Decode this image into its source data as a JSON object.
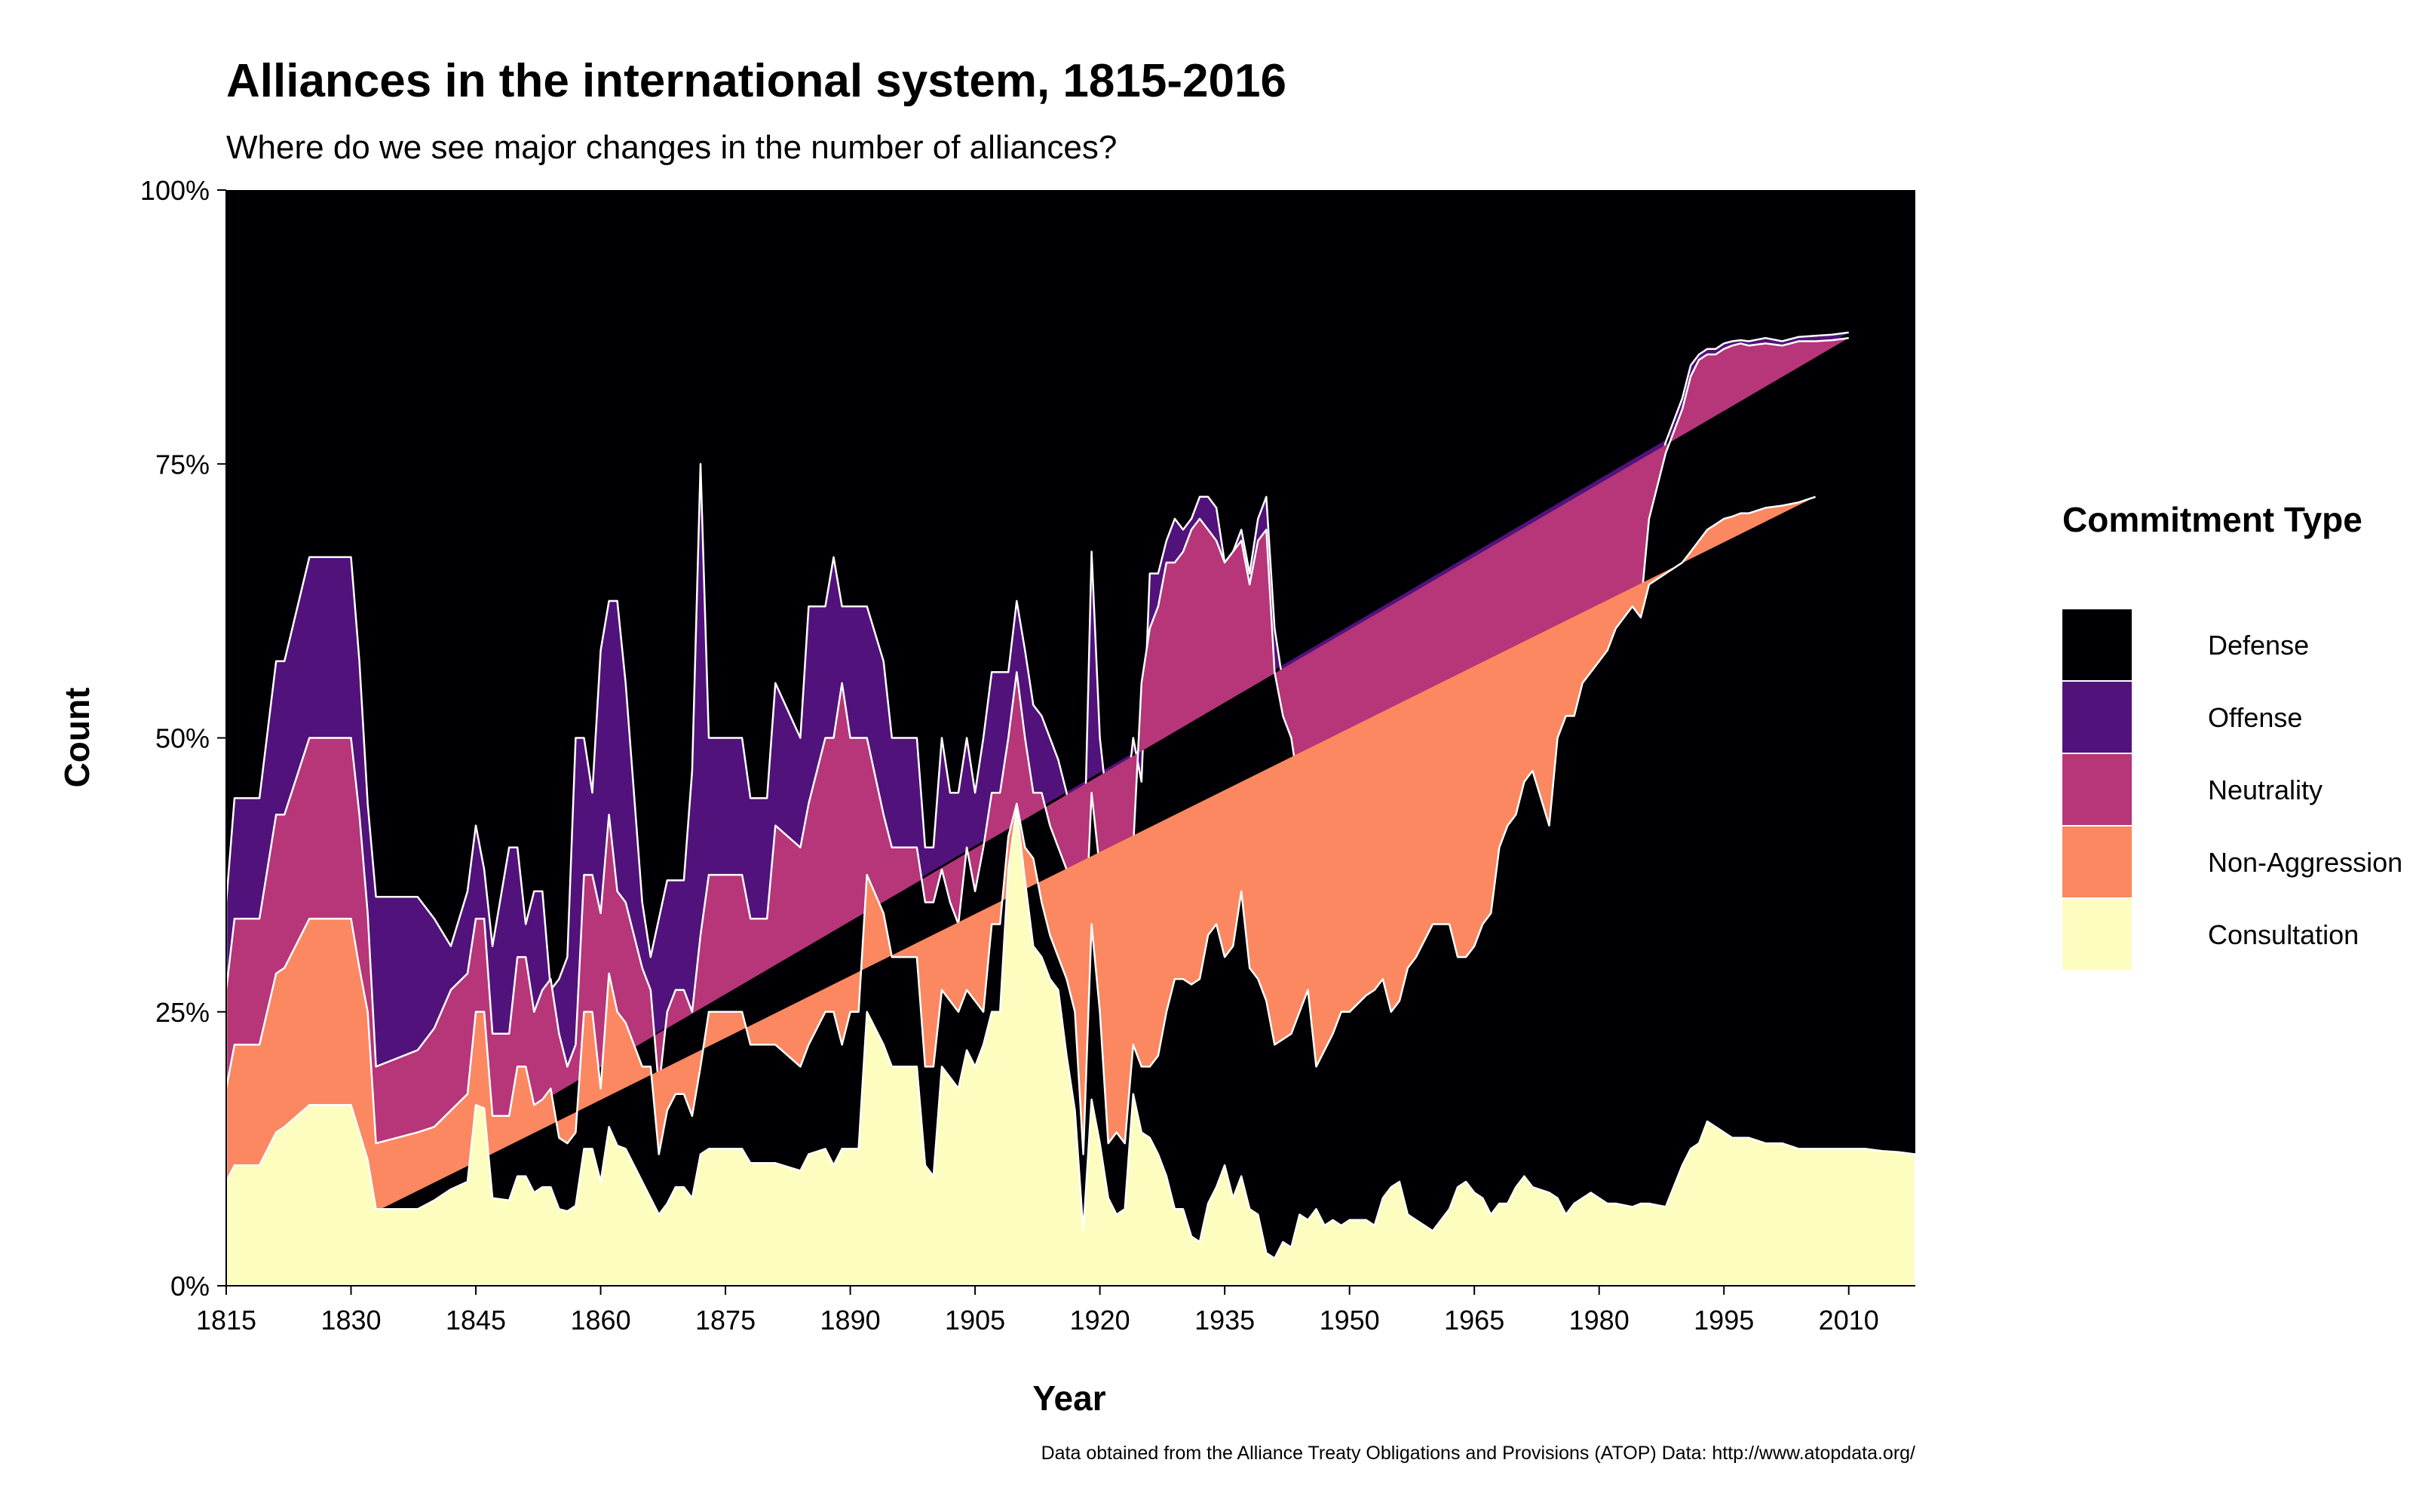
{
  "chart_data": {
    "type": "area",
    "stacked": "percent",
    "title": "Alliances in the international system, 1815-2016",
    "subtitle": "Where do we see major changes in the number of alliances?",
    "xlabel": "Year",
    "ylabel": "Count",
    "caption": "Data obtained from the Alliance Treaty Obligations and Provisions (ATOP) Data: http://www.atopdata.org/",
    "xlim": [
      1815,
      2018
    ],
    "ylim": [
      0,
      1
    ],
    "x_ticks": [
      1815,
      1830,
      1845,
      1860,
      1875,
      1890,
      1905,
      1920,
      1935,
      1950,
      1965,
      1980,
      1995,
      2010
    ],
    "x_tick_labels": [
      "1815",
      "1830",
      "1845",
      "1860",
      "1875",
      "1890",
      "1905",
      "1920",
      "1935",
      "1950",
      "1965",
      "1980",
      "1995",
      "2010"
    ],
    "y_ticks": [
      0,
      0.25,
      0.5,
      0.75,
      1
    ],
    "y_tick_labels": [
      "0%",
      "25%",
      "50%",
      "75%",
      "100%"
    ],
    "grid": false,
    "legend": {
      "title": "Commitment Type",
      "position": "right",
      "entries": [
        "Defense",
        "Offense",
        "Neutrality",
        "Non-Aggression",
        "Consultation"
      ]
    },
    "stack_order_bottom_to_top": [
      "Consultation",
      "Non-Aggression",
      "Neutrality",
      "Offense",
      "Defense"
    ],
    "colors": {
      "Defense": "#000004",
      "Offense": "#51127C",
      "Neutrality": "#B63679",
      "Non-Aggression": "#FB8861",
      "Consultation": "#FCFDBF"
    },
    "x": [
      1815,
      1816,
      1819,
      1821,
      1822,
      1825,
      1830,
      1831,
      1832,
      1833,
      1838,
      1840,
      1842,
      1844,
      1845,
      1846,
      1847,
      1849,
      1850,
      1851,
      1852,
      1853,
      1854,
      1855,
      1856,
      1857,
      1858,
      1859,
      1860,
      1861,
      1862,
      1863,
      1865,
      1866,
      1867,
      1868,
      1869,
      1870,
      1871,
      1872,
      1873,
      1877,
      1878,
      1879,
      1880,
      1881,
      1884,
      1885,
      1887,
      1888,
      1889,
      1890,
      1891,
      1892,
      1894,
      1895,
      1898,
      1899,
      1900,
      1901,
      1902,
      1903,
      1904,
      1905,
      1906,
      1907,
      1908,
      1909,
      1910,
      1911,
      1912,
      1913,
      1914,
      1915,
      1916,
      1917,
      1918,
      1919,
      1920,
      1921,
      1922,
      1923,
      1924,
      1925,
      1926,
      1927,
      1928,
      1929,
      1930,
      1931,
      1932,
      1933,
      1934,
      1935,
      1936,
      1937,
      1938,
      1939,
      1940,
      1941,
      1942,
      1943,
      1944,
      1945,
      1946,
      1947,
      1948,
      1949,
      1950,
      1952,
      1953,
      1954,
      1955,
      1956,
      1957,
      1958,
      1960,
      1962,
      1963,
      1964,
      1965,
      1966,
      1967,
      1968,
      1969,
      1970,
      1971,
      1972,
      1974,
      1975,
      1976,
      1977,
      1978,
      1979,
      1980,
      1981,
      1982,
      1984,
      1985,
      1986,
      1988,
      1990,
      1991,
      1992,
      1993,
      1994,
      1995,
      1996,
      1997,
      1998,
      2000,
      2002,
      2004,
      2006,
      2008,
      2010,
      2012,
      2014,
      2016,
      2018
    ],
    "cumulative_upper_bounds": {
      "Consultation": [
        0.095,
        0.11,
        0.11,
        0.14,
        0.145,
        0.165,
        0.165,
        0.14,
        0.115,
        0.07,
        0.07,
        0.078,
        0.088,
        0.095,
        0.165,
        0.162,
        0.08,
        0.078,
        0.1,
        0.1,
        0.085,
        0.09,
        0.09,
        0.07,
        0.068,
        0.073,
        0.125,
        0.125,
        0.095,
        0.145,
        0.128,
        0.125,
        0.095,
        0.08,
        0.065,
        0.075,
        0.09,
        0.09,
        0.08,
        0.12,
        0.125,
        0.125,
        0.112,
        0.112,
        0.112,
        0.112,
        0.105,
        0.12,
        0.125,
        0.11,
        0.125,
        0.125,
        0.125,
        0.25,
        0.22,
        0.2,
        0.2,
        0.11,
        0.1,
        0.2,
        0.19,
        0.18,
        0.215,
        0.2,
        0.22,
        0.25,
        0.25,
        0.38,
        0.435,
        0.37,
        0.31,
        0.3,
        0.28,
        0.27,
        0.21,
        0.16,
        0.05,
        0.17,
        0.13,
        0.08,
        0.065,
        0.07,
        0.175,
        0.14,
        0.135,
        0.12,
        0.1,
        0.07,
        0.07,
        0.045,
        0.04,
        0.075,
        0.09,
        0.11,
        0.08,
        0.1,
        0.07,
        0.065,
        0.03,
        0.025,
        0.04,
        0.035,
        0.065,
        0.06,
        0.07,
        0.055,
        0.06,
        0.055,
        0.06,
        0.06,
        0.055,
        0.08,
        0.09,
        0.095,
        0.065,
        0.06,
        0.05,
        0.07,
        0.09,
        0.095,
        0.085,
        0.08,
        0.065,
        0.075,
        0.075,
        0.09,
        0.1,
        0.09,
        0.085,
        0.08,
        0.065,
        0.075,
        0.08,
        0.085,
        0.08,
        0.075,
        0.075,
        0.072,
        0.075,
        0.075,
        0.072,
        0.11,
        0.125,
        0.13,
        0.15,
        0.145,
        0.14,
        0.135,
        0.135,
        0.135,
        0.13,
        0.13,
        0.125,
        0.125,
        0.125,
        0.125,
        0.125,
        0.123,
        0.122,
        0.12
      ],
      "Non-Aggression": [
        0.18,
        0.22,
        0.22,
        0.285,
        0.29,
        0.335,
        0.335,
        0.29,
        0.25,
        0.13,
        0.14,
        0.145,
        0.16,
        0.175,
        0.25,
        0.25,
        0.155,
        0.155,
        0.2,
        0.2,
        0.165,
        0.17,
        0.18,
        0.135,
        0.13,
        0.14,
        0.25,
        0.25,
        0.18,
        0.285,
        0.25,
        0.24,
        0.2,
        0.2,
        0.12,
        0.16,
        0.175,
        0.175,
        0.155,
        0.2,
        0.25,
        0.25,
        0.22,
        0.22,
        0.22,
        0.22,
        0.2,
        0.22,
        0.25,
        0.25,
        0.22,
        0.25,
        0.25,
        0.375,
        0.34,
        0.3,
        0.3,
        0.2,
        0.2,
        0.27,
        0.26,
        0.25,
        0.27,
        0.26,
        0.25,
        0.33,
        0.33,
        0.41,
        0.44,
        0.4,
        0.39,
        0.35,
        0.32,
        0.3,
        0.28,
        0.25,
        0.12,
        0.33,
        0.25,
        0.13,
        0.14,
        0.13,
        0.22,
        0.2,
        0.2,
        0.21,
        0.25,
        0.28,
        0.28,
        0.275,
        0.28,
        0.32,
        0.33,
        0.3,
        0.31,
        0.36,
        0.29,
        0.28,
        0.26,
        0.22,
        0.225,
        0.23,
        0.25,
        0.27,
        0.2,
        0.215,
        0.23,
        0.25,
        0.25,
        0.265,
        0.27,
        0.28,
        0.25,
        0.26,
        0.29,
        0.3,
        0.33,
        0.33,
        0.3,
        0.3,
        0.31,
        0.33,
        0.34,
        0.4,
        0.42,
        0.43,
        0.46,
        0.47,
        0.42,
        0.5,
        0.52,
        0.52,
        0.55,
        0.56,
        0.57,
        0.58,
        0.6,
        0.62,
        0.61,
        0.64,
        0.65,
        0.66,
        0.67,
        0.68,
        0.69,
        0.695,
        0.7,
        0.702,
        0.705,
        0.705,
        0.71,
        0.712,
        0.715,
        0.72
      ],
      "Neutrality": [
        0.27,
        0.335,
        0.335,
        0.43,
        0.43,
        0.5,
        0.5,
        0.43,
        0.34,
        0.2,
        0.215,
        0.235,
        0.27,
        0.285,
        0.335,
        0.335,
        0.23,
        0.23,
        0.3,
        0.3,
        0.25,
        0.27,
        0.28,
        0.23,
        0.2,
        0.22,
        0.375,
        0.375,
        0.34,
        0.43,
        0.36,
        0.35,
        0.29,
        0.27,
        0.18,
        0.25,
        0.27,
        0.27,
        0.25,
        0.32,
        0.375,
        0.375,
        0.335,
        0.335,
        0.335,
        0.42,
        0.4,
        0.44,
        0.5,
        0.5,
        0.55,
        0.5,
        0.5,
        0.5,
        0.43,
        0.4,
        0.4,
        0.35,
        0.35,
        0.38,
        0.35,
        0.33,
        0.4,
        0.36,
        0.4,
        0.45,
        0.45,
        0.5,
        0.56,
        0.5,
        0.45,
        0.45,
        0.42,
        0.4,
        0.38,
        0.32,
        0.28,
        0.45,
        0.38,
        0.33,
        0.35,
        0.33,
        0.4,
        0.55,
        0.6,
        0.62,
        0.66,
        0.66,
        0.67,
        0.69,
        0.7,
        0.69,
        0.68,
        0.66,
        0.67,
        0.68,
        0.64,
        0.68,
        0.69,
        0.56,
        0.52,
        0.5,
        0.45,
        0.37,
        0.38,
        0.27,
        0.28,
        0.31,
        0.3,
        0.32,
        0.33,
        0.34,
        0.31,
        0.31,
        0.32,
        0.32,
        0.34,
        0.37,
        0.37,
        0.37,
        0.34,
        0.35,
        0.37,
        0.44,
        0.46,
        0.47,
        0.48,
        0.52,
        0.47,
        0.54,
        0.55,
        0.56,
        0.57,
        0.58,
        0.59,
        0.6,
        0.61,
        0.62,
        0.62,
        0.7,
        0.76,
        0.8,
        0.83,
        0.845,
        0.85,
        0.85,
        0.855,
        0.858,
        0.86,
        0.858,
        0.86,
        0.858,
        0.862,
        0.862,
        0.863,
        0.865
      ],
      "Offense": [
        0.35,
        0.445,
        0.445,
        0.57,
        0.57,
        0.665,
        0.665,
        0.57,
        0.44,
        0.355,
        0.355,
        0.335,
        0.31,
        0.36,
        0.42,
        0.38,
        0.31,
        0.4,
        0.4,
        0.33,
        0.36,
        0.36,
        0.27,
        0.28,
        0.3,
        0.5,
        0.5,
        0.45,
        0.58,
        0.625,
        0.625,
        0.55,
        0.35,
        0.3,
        0.335,
        0.37,
        0.37,
        0.37,
        0.47,
        0.75,
        0.5,
        0.5,
        0.445,
        0.445,
        0.445,
        0.55,
        0.5,
        0.62,
        0.62,
        0.665,
        0.62,
        0.62,
        0.62,
        0.62,
        0.57,
        0.5,
        0.5,
        0.4,
        0.4,
        0.5,
        0.45,
        0.45,
        0.5,
        0.45,
        0.5,
        0.56,
        0.56,
        0.56,
        0.625,
        0.58,
        0.53,
        0.52,
        0.5,
        0.48,
        0.45,
        0.38,
        0.36,
        0.67,
        0.5,
        0.43,
        0.4,
        0.43,
        0.5,
        0.46,
        0.65,
        0.65,
        0.68,
        0.7,
        0.69,
        0.7,
        0.72,
        0.72,
        0.71,
        0.66,
        0.67,
        0.69,
        0.65,
        0.7,
        0.72,
        0.6,
        0.55,
        0.52,
        0.48,
        0.4,
        0.4,
        0.3,
        0.3,
        0.34,
        0.33,
        0.35,
        0.34,
        0.36,
        0.33,
        0.33,
        0.33,
        0.33,
        0.35,
        0.38,
        0.38,
        0.39,
        0.35,
        0.36,
        0.38,
        0.45,
        0.48,
        0.49,
        0.5,
        0.53,
        0.48,
        0.55,
        0.56,
        0.57,
        0.58,
        0.6,
        0.61,
        0.615,
        0.62,
        0.63,
        0.63,
        0.71,
        0.77,
        0.81,
        0.84,
        0.85,
        0.855,
        0.855,
        0.86,
        0.862,
        0.863,
        0.862,
        0.865,
        0.862,
        0.866,
        0.867,
        0.868,
        0.87
      ]
    }
  }
}
